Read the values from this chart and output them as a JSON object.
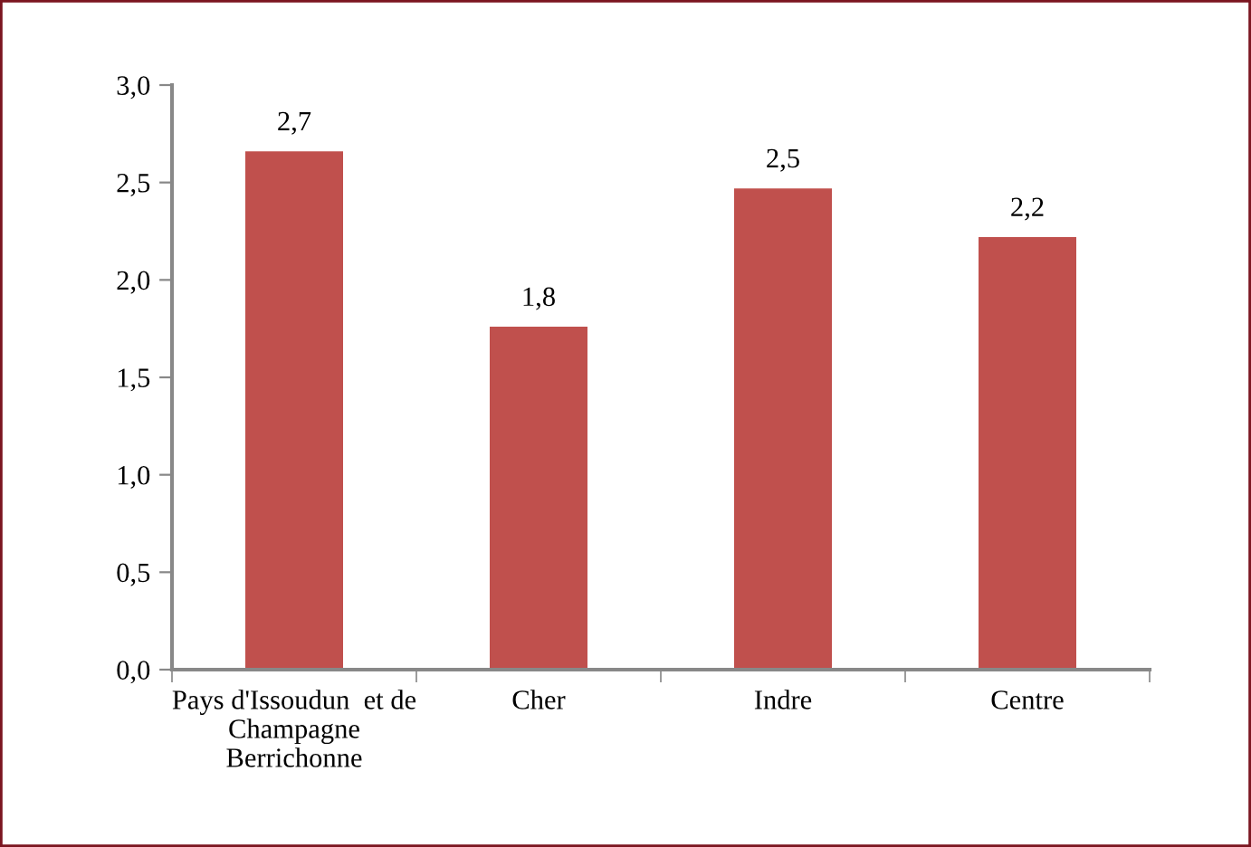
{
  "chart_data": {
    "type": "bar",
    "categories": [
      "Pays d'Issoudun  et de\nChampagne\nBerrichonne",
      "Cher",
      "Indre",
      "Centre"
    ],
    "values": [
      2.66,
      1.76,
      2.47,
      2.22
    ],
    "color": "#c0504d",
    "value_labels": [
      "2,7",
      "1,8",
      "2,5",
      "2,2"
    ],
    "ylim": [
      0,
      3
    ],
    "yticks": [
      {
        "value": 0,
        "label": "0,0"
      },
      {
        "value": 0.5,
        "label": "0,5"
      },
      {
        "value": 1,
        "label": "1,0"
      },
      {
        "value": 1.5,
        "label": "1,5"
      },
      {
        "value": 2,
        "label": "2,0"
      },
      {
        "value": 2.5,
        "label": "2,5"
      },
      {
        "value": 3,
        "label": "3,0"
      }
    ],
    "grid": false,
    "legend": false
  }
}
